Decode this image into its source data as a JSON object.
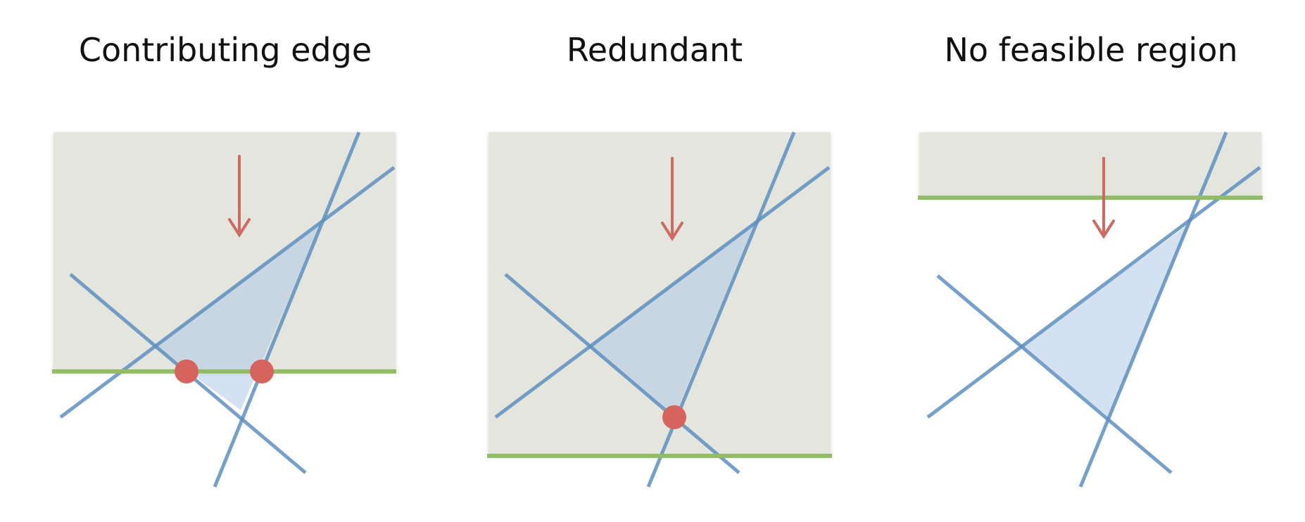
{
  "panels": [
    {
      "title": "Contributing edge"
    },
    {
      "title": "Redundant"
    },
    {
      "title": "No feasible region"
    }
  ],
  "colors": {
    "background_box": "#e4e6de",
    "lines": "#5d8fbf",
    "feasible_fill": "#aec8e3",
    "boundary": "#92bc66",
    "marker": "#d5635e",
    "arrow": "#cf6a63"
  }
}
